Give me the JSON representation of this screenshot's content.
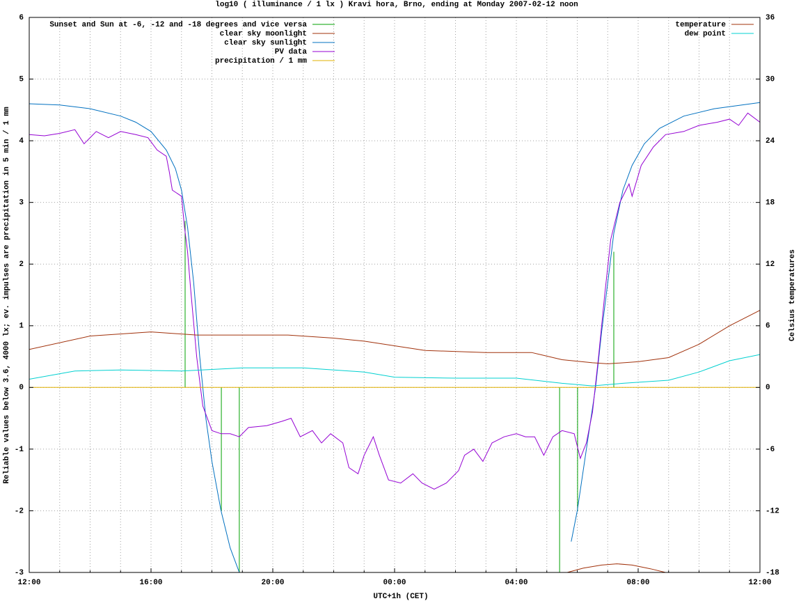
{
  "chart_data": {
    "type": "line",
    "title": "log10 ( illuminance / 1 lx ) Kravi hora, Brno, ending at Monday 2007-02-12 noon",
    "x_label": "UTC+1h (CET)",
    "y_label": "Reliable values below 3.6, 4000 lx; ev. impulses are precipitation in 5 min / 1 mm",
    "y2_label": "Celsius temperatures",
    "xlim": [
      0,
      24
    ],
    "xticks": [
      {
        "value": 0,
        "label": "12:00"
      },
      {
        "value": 4,
        "label": "16:00"
      },
      {
        "value": 8,
        "label": "20:00"
      },
      {
        "value": 12,
        "label": "00:00"
      },
      {
        "value": 16,
        "label": "04:00"
      },
      {
        "value": 20,
        "label": "08:00"
      },
      {
        "value": 24,
        "label": "12:00"
      }
    ],
    "xminorticks": [
      1,
      2,
      3,
      5,
      6,
      7,
      9,
      10,
      11,
      13,
      14,
      15,
      17,
      18,
      19,
      21,
      22,
      23
    ],
    "ylim": [
      -3,
      6
    ],
    "yticks": [
      -3,
      -2,
      -1,
      0,
      1,
      2,
      3,
      4,
      5,
      6
    ],
    "y2lim": [
      -18,
      36
    ],
    "y2ticks": [
      -18,
      -12,
      -6,
      0,
      6,
      12,
      18,
      24,
      30,
      36
    ],
    "grid": true,
    "series": [
      {
        "name": "Sunset and Sun at -6, -12 and -18 degrees and vice versa",
        "color": "#00a000",
        "style": "impulses",
        "x": [
          5.12,
          6.31,
          6.9,
          17.42,
          18.01,
          19.2
        ],
        "values": [
          2.7,
          -2.0,
          -3,
          -3,
          -2.0,
          2.2
        ]
      },
      {
        "name": "clear sky moonlight",
        "color": "#a0300a",
        "style": "line",
        "x": [
          17.67,
          18.2,
          18.8,
          19.3,
          19.8,
          20.4,
          20.9
        ],
        "values": [
          -3,
          -2.93,
          -2.88,
          -2.86,
          -2.88,
          -2.94,
          -3
        ]
      },
      {
        "name": "clear sky sunlight",
        "color": "#0070c0",
        "style": "line",
        "x": [
          0,
          1,
          2,
          3,
          3.5,
          4,
          4.5,
          4.8,
          5.0,
          5.2,
          5.4,
          5.6,
          5.8,
          6.0,
          6.3,
          6.6,
          6.9,
          17.6,
          17.8,
          18.0,
          18.3,
          18.6,
          18.8,
          19.0,
          19.2,
          19.5,
          19.8,
          20.2,
          20.7,
          21.5,
          22.5,
          24
        ],
        "values": [
          4.6,
          4.58,
          4.52,
          4.4,
          4.3,
          4.15,
          3.85,
          3.55,
          3.2,
          2.6,
          1.7,
          0.5,
          -0.5,
          -1.2,
          -2.0,
          -2.6,
          -3.0,
          null,
          -2.5,
          -2.0,
          -1.0,
          0,
          0.9,
          1.7,
          2.5,
          3.2,
          3.6,
          3.95,
          4.2,
          4.4,
          4.52,
          4.62
        ]
      },
      {
        "name": "PV data",
        "color": "#9400d3",
        "style": "line",
        "x": [
          0,
          0.5,
          1,
          1.5,
          1.8,
          2.2,
          2.6,
          3,
          3.5,
          3.9,
          4.2,
          4.5,
          4.6,
          4.7,
          5.0,
          5.1,
          5.2,
          5.3,
          5.5,
          5.7,
          6.0,
          6.3,
          6.6,
          6.9,
          7.2,
          7.8,
          8.3,
          8.6,
          8.9,
          9.3,
          9.6,
          9.9,
          10.3,
          10.5,
          10.8,
          11.0,
          11.3,
          11.5,
          11.8,
          12.2,
          12.6,
          12.9,
          13.3,
          13.7,
          14.1,
          14.3,
          14.6,
          14.9,
          15.2,
          15.6,
          16.0,
          16.3,
          16.6,
          16.9,
          17.2,
          17.5,
          17.9,
          18.1,
          18.3,
          18.5,
          18.7,
          18.9,
          19.1,
          19.4,
          19.7,
          19.8,
          20.1,
          20.5,
          20.9,
          21.5,
          22,
          22.6,
          23,
          23.3,
          23.6,
          24
        ],
        "values": [
          4.1,
          4.08,
          4.12,
          4.18,
          3.95,
          4.15,
          4.05,
          4.15,
          4.1,
          4.05,
          3.85,
          3.75,
          3.5,
          3.2,
          3.1,
          2.6,
          2.2,
          1.6,
          0.5,
          -0.3,
          -0.7,
          -0.75,
          -0.75,
          -0.8,
          -0.65,
          -0.62,
          -0.55,
          -0.5,
          -0.8,
          -0.7,
          -0.9,
          -0.75,
          -0.9,
          -1.3,
          -1.4,
          -1.1,
          -0.8,
          -1.1,
          -1.5,
          -1.55,
          -1.4,
          -1.55,
          -1.65,
          -1.55,
          -1.35,
          -1.1,
          -1.0,
          -1.2,
          -0.9,
          -0.8,
          -0.75,
          -0.8,
          -0.8,
          -1.1,
          -0.8,
          -0.7,
          -0.75,
          -1.15,
          -0.9,
          -0.4,
          0.5,
          1.5,
          2.4,
          3.0,
          3.3,
          3.1,
          3.6,
          3.9,
          4.1,
          4.15,
          4.25,
          4.3,
          4.35,
          4.25,
          4.45,
          4.3
        ]
      },
      {
        "name": "precipitation / 1 mm",
        "color": "#e0b000",
        "style": "line",
        "x": [
          0,
          24
        ],
        "values": [
          0,
          0
        ]
      },
      {
        "name": "temperature",
        "color": "#a0300a",
        "style": "line",
        "axis": "y2",
        "x": [
          0,
          2,
          4,
          5.5,
          8.5,
          10,
          11,
          13,
          15,
          16.5,
          17.5,
          18.5,
          19,
          20,
          21,
          22,
          23,
          24
        ],
        "values": [
          3.7,
          5.0,
          5.4,
          5.1,
          5.1,
          4.8,
          4.5,
          3.6,
          3.4,
          3.4,
          2.7,
          2.4,
          2.3,
          2.5,
          2.9,
          4.2,
          6.0,
          7.5
        ]
      },
      {
        "name": "dew point",
        "color": "#00d0d0",
        "style": "line",
        "axis": "y2",
        "x": [
          0,
          1.5,
          3,
          5,
          7,
          9,
          11,
          12,
          14,
          16,
          17.5,
          18.5,
          19.5,
          21,
          22,
          23,
          24
        ],
        "values": [
          0.8,
          1.6,
          1.7,
          1.6,
          1.9,
          1.9,
          1.5,
          1.0,
          0.9,
          0.9,
          0.4,
          0.15,
          0.4,
          0.7,
          1.5,
          2.6,
          3.2
        ]
      }
    ]
  }
}
